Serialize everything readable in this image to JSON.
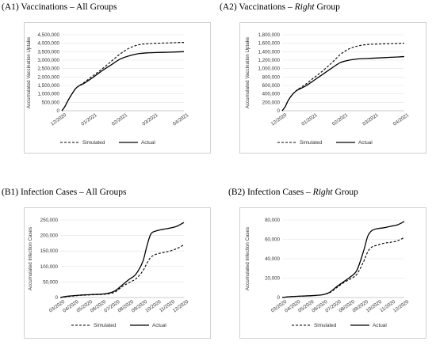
{
  "chart_data": [
    {
      "id": "a1",
      "type": "line",
      "title": {
        "prefix": "(A1) Vaccinations – ",
        "emph": "",
        "suffix": "All Groups"
      },
      "ylabel": "Accumulated Vaccination Uptake",
      "xlabel": "",
      "y_ticks": [
        "0",
        "500,000",
        "1,000,000",
        "1,500,000",
        "2,000,000",
        "2,500,000",
        "3,000,000",
        "3,500,000",
        "4,000,000",
        "4,500,000"
      ],
      "ylim": [
        0,
        4500000
      ],
      "x_ticks": [
        "12/2020",
        "01/2021",
        "02/2021",
        "03/2021",
        "04/2021"
      ],
      "grid": true,
      "legend_position": "bottom",
      "series": [
        {
          "name": "Simulated",
          "style": "dashed",
          "x": [
            0,
            0.1,
            0.2,
            0.35,
            0.5,
            0.75,
            1.0,
            1.3,
            1.6,
            1.9,
            2.2,
            2.5,
            2.8,
            3.1,
            3.5,
            3.8,
            4.0
          ],
          "y": [
            0,
            250000,
            600000,
            1050000,
            1400000,
            1700000,
            2050000,
            2450000,
            2900000,
            3350000,
            3700000,
            3900000,
            3970000,
            4000000,
            4020000,
            4040000,
            4050000
          ]
        },
        {
          "name": "Actual",
          "style": "solid",
          "x": [
            0,
            0.1,
            0.2,
            0.35,
            0.5,
            0.75,
            1.0,
            1.3,
            1.6,
            1.9,
            2.2,
            2.5,
            2.8,
            3.1,
            3.5,
            3.8,
            4.0
          ],
          "y": [
            0,
            250000,
            600000,
            1050000,
            1400000,
            1650000,
            1950000,
            2350000,
            2700000,
            3050000,
            3250000,
            3380000,
            3430000,
            3450000,
            3470000,
            3490000,
            3500000
          ]
        }
      ]
    },
    {
      "id": "a2",
      "type": "line",
      "title": {
        "prefix": "(A2) Vaccinations – ",
        "emph": "Right",
        "suffix": " Group"
      },
      "ylabel": "Accumulated Vaccination Uptake",
      "xlabel": "",
      "y_ticks": [
        "0",
        "200,000",
        "400,000",
        "600,000",
        "800,000",
        "1,000,000",
        "1,200,000",
        "1,400,000",
        "1,600,000",
        "1,800,000"
      ],
      "ylim": [
        0,
        1800000
      ],
      "x_ticks": [
        "12/2020",
        "01/2021",
        "02/2021",
        "03/2021",
        "04/2021"
      ],
      "grid": true,
      "legend_position": "bottom",
      "series": [
        {
          "name": "Simulated",
          "style": "dashed",
          "x": [
            0,
            0.1,
            0.2,
            0.35,
            0.5,
            0.75,
            1.0,
            1.3,
            1.6,
            1.9,
            2.2,
            2.5,
            2.8,
            3.1,
            3.5,
            3.8,
            4.0
          ],
          "y": [
            0,
            100000,
            250000,
            400000,
            500000,
            620000,
            760000,
            930000,
            1120000,
            1330000,
            1470000,
            1540000,
            1570000,
            1580000,
            1590000,
            1595000,
            1600000
          ]
        },
        {
          "name": "Actual",
          "style": "solid",
          "x": [
            0,
            0.1,
            0.2,
            0.35,
            0.5,
            0.75,
            1.0,
            1.3,
            1.6,
            1.9,
            2.2,
            2.5,
            2.8,
            3.1,
            3.5,
            3.8,
            4.0
          ],
          "y": [
            0,
            100000,
            250000,
            400000,
            490000,
            580000,
            700000,
            850000,
            1000000,
            1140000,
            1200000,
            1230000,
            1240000,
            1250000,
            1265000,
            1275000,
            1285000
          ]
        }
      ]
    },
    {
      "id": "b1",
      "type": "line",
      "title": {
        "prefix": "(B1) Infection Cases – ",
        "emph": "",
        "suffix": "All Groups"
      },
      "ylabel": "Accumulated Infection Cases",
      "xlabel": "",
      "y_ticks": [
        "0",
        "50,000",
        "100,000",
        "150,000",
        "200,000",
        "250,000"
      ],
      "ylim": [
        0,
        250000
      ],
      "x_ticks": [
        "03/2020",
        "04/2020",
        "05/2020",
        "06/2020",
        "07/2020",
        "08/2020",
        "09/2020",
        "10/2020",
        "11/2020",
        "12/2020"
      ],
      "grid": true,
      "legend_position": "bottom",
      "series": [
        {
          "name": "Simulated",
          "style": "dashed",
          "x": [
            0,
            0.5,
            1,
            1.5,
            2,
            2.5,
            3,
            3.5,
            4,
            4.5,
            5,
            5.5,
            6,
            6.3,
            6.6,
            7,
            7.5,
            8,
            8.5,
            9
          ],
          "y": [
            0,
            3000,
            5000,
            7000,
            8000,
            9000,
            10000,
            12000,
            18000,
            35000,
            48000,
            60000,
            85000,
            110000,
            130000,
            140000,
            145000,
            150000,
            158000,
            170000
          ]
        },
        {
          "name": "Actual",
          "style": "solid",
          "x": [
            0,
            0.5,
            1,
            1.5,
            2,
            2.5,
            3,
            3.5,
            4,
            4.5,
            5,
            5.5,
            6,
            6.3,
            6.6,
            7,
            7.5,
            8,
            8.5,
            9
          ],
          "y": [
            0,
            4000,
            6000,
            8000,
            9000,
            10000,
            11000,
            14000,
            22000,
            40000,
            58000,
            75000,
            115000,
            165000,
            205000,
            215000,
            220000,
            224000,
            230000,
            242000
          ]
        }
      ]
    },
    {
      "id": "b2",
      "type": "line",
      "title": {
        "prefix": "(B2) Infection Cases – ",
        "emph": "Right",
        "suffix": " Group"
      },
      "ylabel": "Accumulated Infection Cases",
      "xlabel": "",
      "y_ticks": [
        "0",
        "20,000",
        "40,000",
        "60,000",
        "80,000"
      ],
      "ylim": [
        0,
        80000
      ],
      "x_ticks": [
        "03/2020",
        "04/2020",
        "05/2020",
        "06/2020",
        "07/2020",
        "08/2020",
        "09/2020",
        "10/2020",
        "11/2020",
        "12/2020"
      ],
      "grid": true,
      "legend_position": "bottom",
      "series": [
        {
          "name": "Simulated",
          "style": "dashed",
          "x": [
            0,
            0.5,
            1,
            1.5,
            2,
            2.5,
            3,
            3.5,
            4,
            4.5,
            5,
            5.5,
            6,
            6.3,
            6.6,
            7,
            7.5,
            8,
            8.5,
            9
          ],
          "y": [
            0,
            800,
            1200,
            1500,
            1800,
            2200,
            3000,
            5000,
            10000,
            15000,
            19000,
            24000,
            37000,
            47000,
            52000,
            54000,
            56000,
            57000,
            58500,
            62000
          ]
        },
        {
          "name": "Actual",
          "style": "solid",
          "x": [
            0,
            0.5,
            1,
            1.5,
            2,
            2.5,
            3,
            3.5,
            4,
            4.5,
            5,
            5.5,
            6,
            6.3,
            6.6,
            7,
            7.5,
            8,
            8.5,
            9
          ],
          "y": [
            0,
            800,
            1200,
            1500,
            1800,
            2200,
            3000,
            5500,
            11000,
            16000,
            21000,
            28000,
            48000,
            63000,
            69000,
            71000,
            72000,
            73500,
            75000,
            78500
          ]
        }
      ]
    }
  ]
}
